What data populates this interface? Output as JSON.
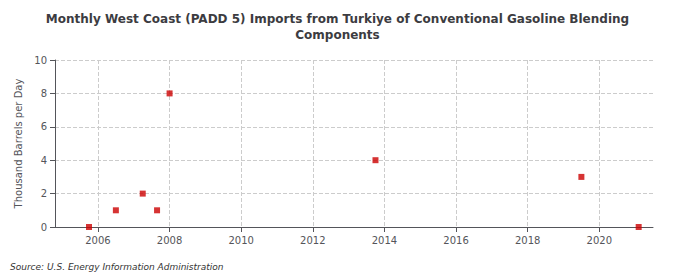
{
  "chart_data": {
    "type": "scatter",
    "title": "Monthly West Coast (PADD 5) Imports from Turkiye of Conventional Gasoline Blending\nComponents",
    "ylabel": "Thousand Barrels per Day",
    "annotations": [
      "Source: U.S. Energy Information Administration"
    ],
    "x": [
      2005.75,
      2006.5,
      2007.25,
      2007.65,
      2008.0,
      2013.75,
      2019.5,
      2021.1
    ],
    "values": [
      0.0,
      1.0,
      2.0,
      1.0,
      8.0,
      4.0,
      3.0,
      0.0
    ],
    "color": "#cc0000",
    "marker": "square",
    "xlim": [
      2004.8,
      2021.5
    ],
    "xticks": [
      2006,
      2008,
      2010,
      2012,
      2014,
      2016,
      2018,
      2020
    ],
    "ylim": [
      0,
      10
    ],
    "yticks": [
      0,
      2,
      4,
      6,
      8,
      10
    ],
    "grid": true
  }
}
